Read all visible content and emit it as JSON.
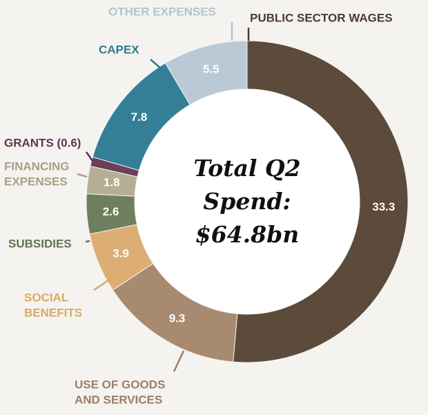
{
  "chart_data": {
    "type": "donut",
    "center_text": [
      "Total Q2",
      "Spend:",
      "$64.8bn"
    ],
    "categories": [
      [
        "PUBLIC SECTOR WAGES"
      ],
      [
        "USE OF GOODS",
        "AND SERVICES"
      ],
      [
        "SOCIAL",
        "BENEFITS"
      ],
      [
        "SUBSIDIES"
      ],
      [
        "FINANCING",
        "EXPENSES"
      ],
      [
        "GRANTS (0.6)"
      ],
      [
        "CAPEX"
      ],
      [
        "OTHER EXPENSES"
      ]
    ],
    "values": [
      33.3,
      9.3,
      3.9,
      2.6,
      1.8,
      0.6,
      7.8,
      5.5
    ],
    "colors": [
      "#5c4a3a",
      "#a88a70",
      "#dcae74",
      "#6f7f5d",
      "#b6ae94",
      "#6b3f58",
      "#347f96",
      "#b9cad6"
    ],
    "label_colors": [
      "#4a3b2e",
      "#9c7d64",
      "#d9a865",
      "#5f7350",
      "#a89f84",
      "#5e3552",
      "#2f7a90",
      "#b2c4d1"
    ]
  }
}
